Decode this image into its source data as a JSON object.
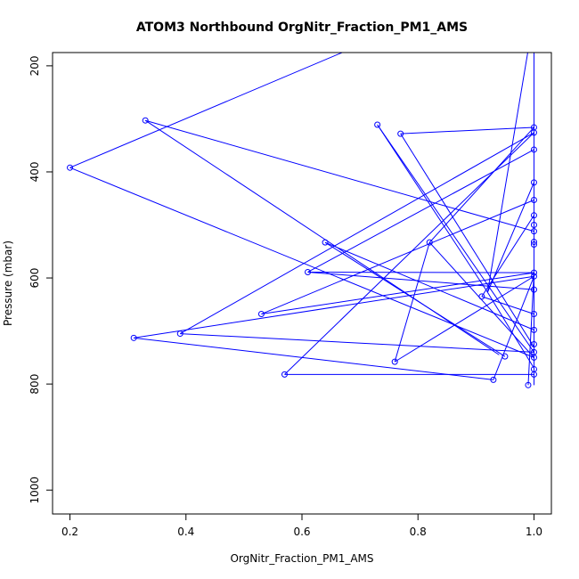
{
  "chart_data": {
    "type": "line",
    "title": "ATOM3 Northbound OrgNitr_Fraction_PM1_AMS",
    "xlabel": "OrgNitr_Fraction_PM1_AMS",
    "ylabel": "Pressure (mbar)",
    "xlim": [
      0.17,
      1.03
    ],
    "ylim": [
      1045,
      175
    ],
    "y_reversed": true,
    "x_ticks": [
      "0.2",
      "0.4",
      "0.6",
      "0.8",
      "1.0"
    ],
    "y_ticks": [
      "200",
      "400",
      "600",
      "800",
      "1000"
    ],
    "color": "#0000ff",
    "series": [
      {
        "markers": "open-circle",
        "points": [
          {
            "x": 0.2,
            "y": 392
          },
          {
            "x": 0.33,
            "y": 303
          },
          {
            "x": 0.73,
            "y": 311
          },
          {
            "x": 0.77,
            "y": 328
          },
          {
            "x": 1.0,
            "y": 316
          },
          {
            "x": 1.0,
            "y": 326
          },
          {
            "x": 1.0,
            "y": 358
          },
          {
            "x": 1.0,
            "y": 420
          },
          {
            "x": 1.0,
            "y": 453
          },
          {
            "x": 1.0,
            "y": 482
          },
          {
            "x": 1.0,
            "y": 500
          },
          {
            "x": 1.0,
            "y": 512
          },
          {
            "x": 1.0,
            "y": 532
          },
          {
            "x": 1.0,
            "y": 537
          },
          {
            "x": 0.64,
            "y": 533
          },
          {
            "x": 0.82,
            "y": 533
          },
          {
            "x": 0.61,
            "y": 589
          },
          {
            "x": 1.0,
            "y": 590
          },
          {
            "x": 1.0,
            "y": 597
          },
          {
            "x": 1.0,
            "y": 622
          },
          {
            "x": 0.91,
            "y": 635
          },
          {
            "x": 0.53,
            "y": 668
          },
          {
            "x": 1.0,
            "y": 668
          },
          {
            "x": 1.0,
            "y": 698
          },
          {
            "x": 0.39,
            "y": 705
          },
          {
            "x": 0.31,
            "y": 713
          },
          {
            "x": 1.0,
            "y": 725
          },
          {
            "x": 1.0,
            "y": 740
          },
          {
            "x": 0.95,
            "y": 748
          },
          {
            "x": 1.0,
            "y": 750
          },
          {
            "x": 0.76,
            "y": 758
          },
          {
            "x": 1.0,
            "y": 772
          },
          {
            "x": 0.57,
            "y": 782
          },
          {
            "x": 1.0,
            "y": 782
          },
          {
            "x": 0.93,
            "y": 792
          },
          {
            "x": 0.99,
            "y": 802
          }
        ]
      }
    ],
    "segments": [
      [
        [
          0.2,
          392
        ],
        [
          0.68,
          170
        ]
      ],
      [
        [
          0.2,
          392
        ],
        [
          1.0,
          750
        ]
      ],
      [
        [
          0.33,
          303
        ],
        [
          1.0,
          512
        ]
      ],
      [
        [
          0.33,
          303
        ],
        [
          0.94,
          745
        ]
      ],
      [
        [
          0.73,
          311
        ],
        [
          1.0,
          740
        ]
      ],
      [
        [
          0.73,
          311
        ],
        [
          0.92,
          627
        ]
      ],
      [
        [
          0.77,
          328
        ],
        [
          1.0,
          316
        ]
      ],
      [
        [
          0.77,
          328
        ],
        [
          1.0,
          730
        ]
      ],
      [
        [
          1.0,
          170
        ],
        [
          1.0,
          802
        ]
      ],
      [
        [
          0.99,
          170
        ],
        [
          0.92,
          627
        ]
      ],
      [
        [
          0.82,
          533
        ],
        [
          1.0,
          316
        ]
      ],
      [
        [
          0.82,
          533
        ],
        [
          0.76,
          758
        ]
      ],
      [
        [
          0.57,
          782
        ],
        [
          1.0,
          782
        ]
      ],
      [
        [
          0.57,
          782
        ],
        [
          1.0,
          326
        ]
      ],
      [
        [
          0.64,
          533
        ],
        [
          1.0,
          698
        ]
      ],
      [
        [
          0.64,
          533
        ],
        [
          0.95,
          748
        ]
      ],
      [
        [
          0.61,
          589
        ],
        [
          1.0,
          358
        ]
      ],
      [
        [
          0.61,
          589
        ],
        [
          1.0,
          590
        ]
      ],
      [
        [
          0.61,
          589
        ],
        [
          1.0,
          622
        ]
      ],
      [
        [
          0.53,
          668
        ],
        [
          1.0,
          453
        ]
      ],
      [
        [
          0.53,
          668
        ],
        [
          1.0,
          590
        ]
      ],
      [
        [
          0.39,
          705
        ],
        [
          1.0,
          326
        ]
      ],
      [
        [
          0.39,
          705
        ],
        [
          1.0,
          740
        ]
      ],
      [
        [
          0.31,
          713
        ],
        [
          1.0,
          597
        ]
      ],
      [
        [
          0.31,
          713
        ],
        [
          0.93,
          792
        ]
      ],
      [
        [
          0.93,
          792
        ],
        [
          1.0,
          597
        ]
      ],
      [
        [
          0.99,
          802
        ],
        [
          1.0,
          590
        ]
      ],
      [
        [
          0.76,
          758
        ],
        [
          1.0,
          597
        ]
      ],
      [
        [
          0.91,
          635
        ],
        [
          1.0,
          482
        ]
      ],
      [
        [
          0.91,
          635
        ],
        [
          1.0,
          668
        ]
      ],
      [
        [
          0.92,
          627
        ],
        [
          1.0,
          420
        ]
      ],
      [
        [
          0.92,
          627
        ],
        [
          1.0,
          770
        ]
      ],
      [
        [
          0.82,
          533
        ],
        [
          1.0,
          750
        ]
      ]
    ]
  }
}
